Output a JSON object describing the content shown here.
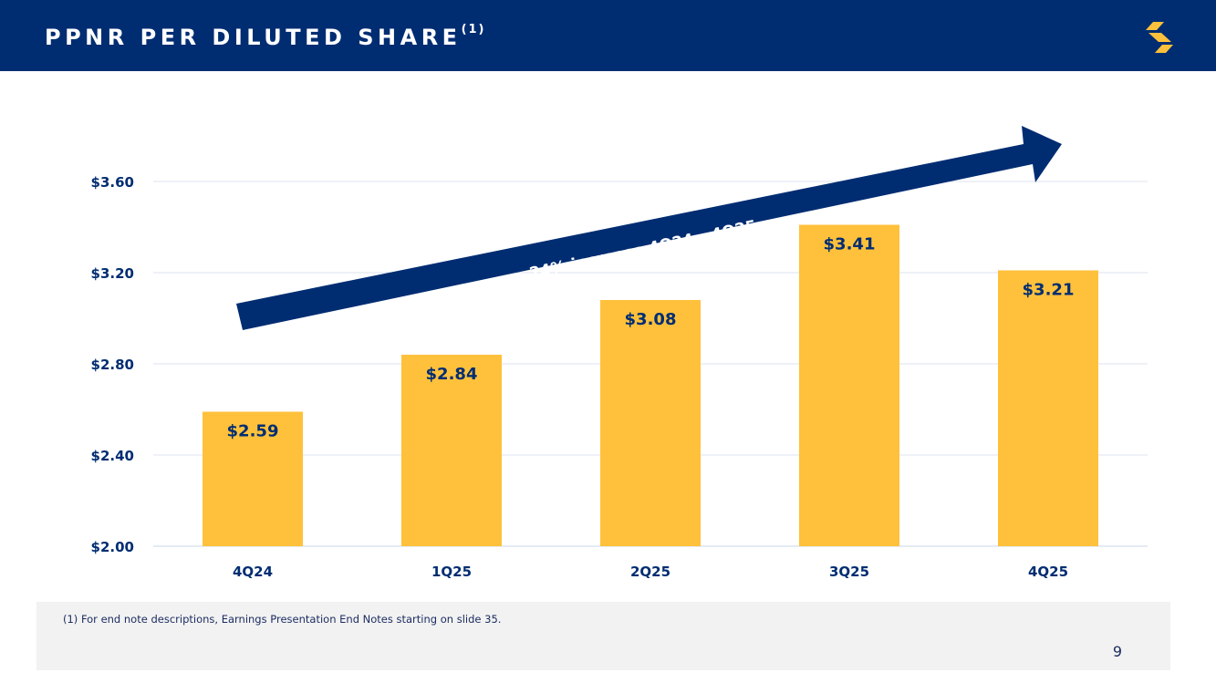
{
  "header": {
    "title": "PPNR PER DILUTED SHARE",
    "title_superscript": "(1)",
    "background_color": "#002d72",
    "logo_icon": "s-logo-icon",
    "logo_color": "#ffc13b"
  },
  "chart_data": {
    "type": "bar",
    "title": "PPNR per Diluted Share",
    "categories": [
      "4Q24",
      "1Q25",
      "2Q25",
      "3Q25",
      "4Q25"
    ],
    "values": [
      2.59,
      2.84,
      3.08,
      3.41,
      3.21
    ],
    "value_labels": [
      "$2.59",
      "$2.84",
      "$3.08",
      "$3.41",
      "$3.21"
    ],
    "yticks": [
      2.0,
      2.4,
      2.8,
      3.2,
      3.6
    ],
    "ytick_labels": [
      "$2.00",
      "$2.40",
      "$2.80",
      "$3.20",
      "$3.60"
    ],
    "ylim": [
      2.0,
      3.8
    ],
    "xlabel": "",
    "ylabel": "",
    "grid": true,
    "bar_color": "#ffc13b",
    "text_color": "#002d72",
    "annotation": {
      "text": "24% increase 4Q24 – 4Q25",
      "shape": "arrow",
      "color": "#002d72",
      "text_color": "#ffffff"
    }
  },
  "footer": {
    "footnote": "(1)  For end note descriptions, Earnings Presentation End Notes starting on slide 35.",
    "page_number": "9"
  }
}
